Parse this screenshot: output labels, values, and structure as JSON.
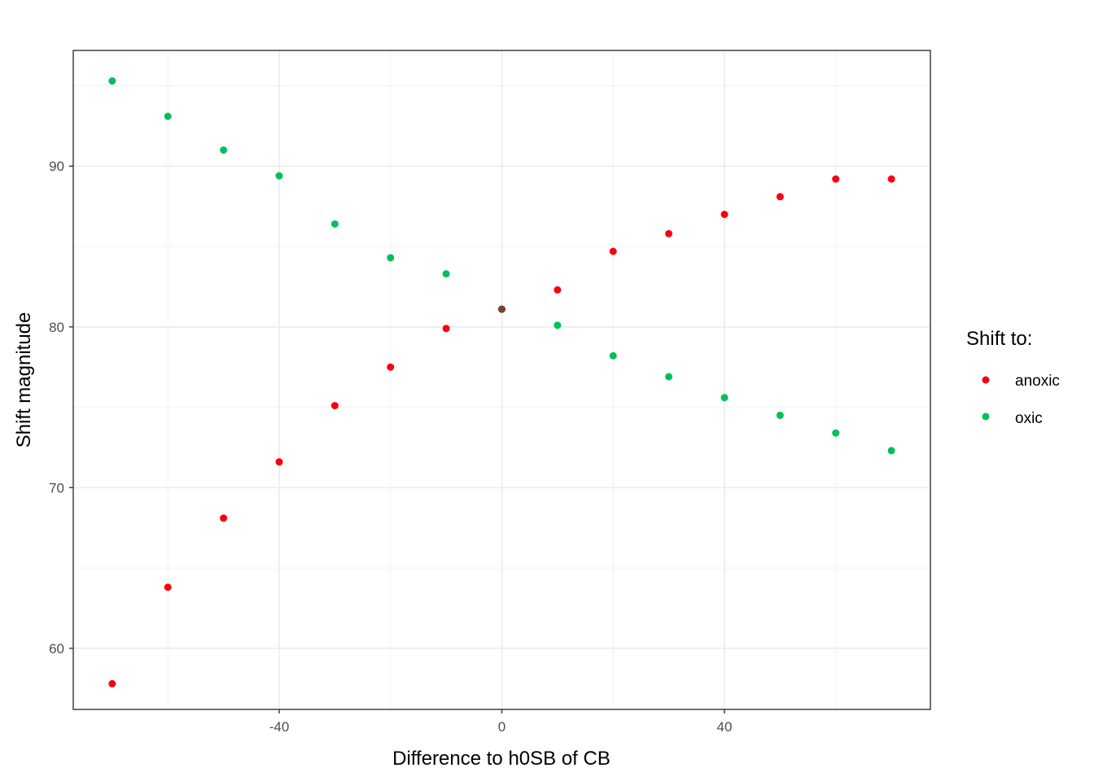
{
  "chart_data": {
    "type": "scatter",
    "xlabel": "Difference to h0SB of CB",
    "ylabel": "Shift magnitude",
    "xlim": [
      -77,
      77
    ],
    "ylim": [
      56.2,
      97.2
    ],
    "x_ticks": [
      -40,
      0,
      40
    ],
    "y_ticks": [
      60,
      70,
      80,
      90
    ],
    "x_tick_labels": [
      "-40",
      "0",
      "40"
    ],
    "y_tick_labels": [
      "60",
      "70",
      "80",
      "90"
    ],
    "grid": true,
    "legend": {
      "title": "Shift to:",
      "position": "right",
      "entries": [
        "anoxic",
        "oxic"
      ]
    },
    "colors": {
      "anoxic": "#f8000f",
      "oxic": "#00c05a",
      "overlap": "#7a4030"
    },
    "series": [
      {
        "name": "anoxic",
        "x": [
          -70,
          -60,
          -50,
          -40,
          -30,
          -20,
          -10,
          0,
          10,
          20,
          30,
          40,
          50,
          60,
          70
        ],
        "y": [
          57.8,
          63.8,
          68.1,
          71.6,
          75.1,
          77.5,
          79.9,
          81.1,
          82.3,
          84.7,
          85.8,
          87.0,
          88.1,
          89.2,
          89.2
        ]
      },
      {
        "name": "oxic",
        "x": [
          -70,
          -60,
          -50,
          -40,
          -30,
          -20,
          -10,
          0,
          10,
          20,
          30,
          40,
          50,
          60,
          70
        ],
        "y": [
          95.3,
          93.1,
          91.0,
          89.4,
          86.4,
          84.3,
          83.3,
          81.1,
          80.1,
          78.2,
          76.9,
          75.6,
          74.5,
          73.4,
          72.3
        ]
      }
    ]
  }
}
